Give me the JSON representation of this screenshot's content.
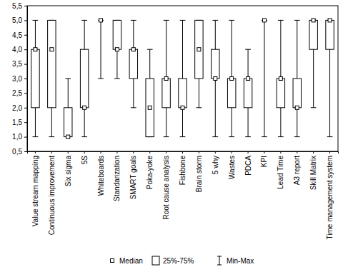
{
  "chart_data": {
    "type": "box",
    "categories": [
      "Value stream mapping",
      "Continuous improvement",
      "Six sigma",
      "5S",
      "Whiteboards",
      "Standarization",
      "SMART goals",
      "Poka-yoke",
      "Root cause analysis",
      "Fishbone",
      "Brain storm",
      "5 why",
      "Wastes",
      "PDCA",
      "KPI",
      "Lead Time",
      "A3 report",
      "Skill Matrix",
      "Time management system"
    ],
    "series": [
      {
        "name": "Median",
        "values": [
          4,
          4,
          1,
          2,
          5,
          4,
          4,
          2,
          3,
          2,
          4,
          3,
          3,
          3,
          5,
          3,
          2,
          5,
          5
        ]
      },
      {
        "name": "25%-75%",
        "values": [
          [
            2,
            4
          ],
          [
            2,
            5
          ],
          [
            1,
            2
          ],
          [
            2,
            4
          ],
          [
            5,
            5
          ],
          [
            4,
            5
          ],
          [
            3,
            4
          ],
          [
            1,
            3
          ],
          [
            2,
            3
          ],
          [
            2,
            3
          ],
          [
            3,
            5
          ],
          [
            3,
            4
          ],
          [
            2,
            3
          ],
          [
            2,
            3
          ],
          [
            5,
            5
          ],
          [
            2,
            3
          ],
          [
            2,
            3
          ],
          [
            4,
            5
          ],
          [
            4,
            5
          ]
        ]
      },
      {
        "name": "Min-Max",
        "values": [
          [
            1,
            5
          ],
          [
            1,
            5
          ],
          [
            1,
            3
          ],
          [
            1,
            5
          ],
          [
            3,
            5
          ],
          [
            3,
            5
          ],
          [
            2,
            5
          ],
          [
            1,
            4
          ],
          [
            1,
            5
          ],
          [
            1,
            5
          ],
          [
            2,
            5
          ],
          [
            1,
            5
          ],
          [
            1,
            5
          ],
          [
            1,
            4
          ],
          [
            1,
            5
          ],
          [
            1,
            5
          ],
          [
            1,
            5
          ],
          [
            2,
            5
          ],
          [
            1,
            5
          ]
        ]
      }
    ],
    "ylim": [
      0.5,
      5.5
    ],
    "yticks": [
      {
        "value": 0.5,
        "label": "0,5"
      },
      {
        "value": 1.0,
        "label": "1,0"
      },
      {
        "value": 1.5,
        "label": "1,5"
      },
      {
        "value": 2.0,
        "label": "2,0"
      },
      {
        "value": 2.5,
        "label": "2,5"
      },
      {
        "value": 3.0,
        "label": "3,0"
      },
      {
        "value": 3.5,
        "label": "3,5"
      },
      {
        "value": 4.0,
        "label": "4,0"
      },
      {
        "value": 4.5,
        "label": "4,5"
      },
      {
        "value": 5.0,
        "label": "5,0"
      },
      {
        "value": 5.5,
        "label": "5,5"
      }
    ],
    "grid": false,
    "legend": "bottom"
  }
}
